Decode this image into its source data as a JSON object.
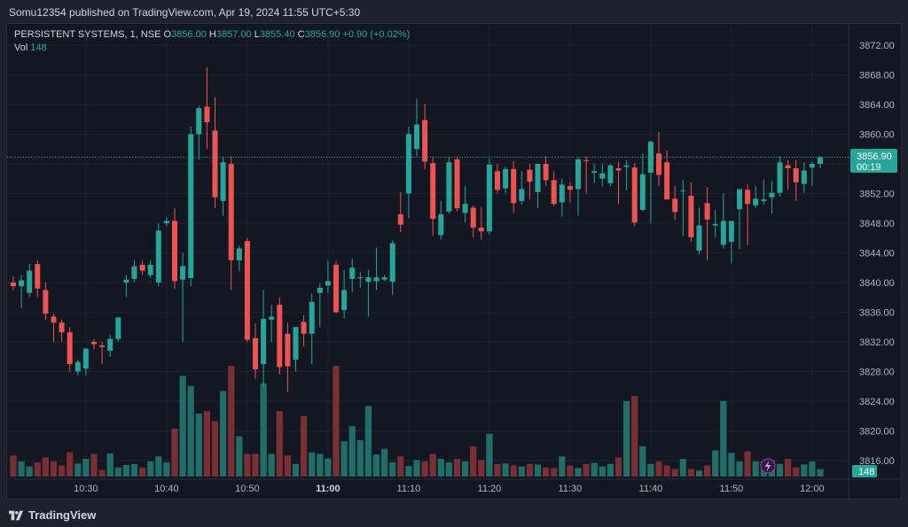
{
  "publisher_line": "Somu12354 published on TradingView.com, Apr 19, 2024 11:55 UTC+5:30",
  "legend": {
    "symbol": "PERSISTENT SYSTEMS, 1, NSE",
    "open_label": "O",
    "open": "3856.00",
    "high_label": "H",
    "high": "3857.00",
    "low_label": "L",
    "low": "3855.40",
    "close_label": "C",
    "close": "3856.90",
    "change": "+0.90 (+0.02%)"
  },
  "volume_legend": {
    "label": "Vol",
    "value": "148"
  },
  "price_tag": {
    "price": "3856.90",
    "countdown": "00:19"
  },
  "volume_tag": "148",
  "footer_brand": "TradingView",
  "colors": {
    "up": "#26a69a",
    "down": "#ef5350",
    "up_vol": "#1f6e68",
    "down_vol": "#7a2f34",
    "bg": "#131722",
    "grid": "#1f2331"
  },
  "chart_data": {
    "type": "candlestick",
    "title": "PERSISTENT SYSTEMS, 1, NSE",
    "ylim": [
      3814,
      3874
    ],
    "y_ticks": [
      "3872.00",
      "3868.00",
      "3864.00",
      "3860.00",
      "3856.00",
      "3852.00",
      "3848.00",
      "3844.00",
      "3840.00",
      "3836.00",
      "3832.00",
      "3828.00",
      "3824.00",
      "3820.00",
      "3816.00"
    ],
    "x_ticks": [
      {
        "label": "10:30",
        "bold": false,
        "index": 9
      },
      {
        "label": "10:40",
        "bold": false,
        "index": 19
      },
      {
        "label": "10:50",
        "bold": false,
        "index": 29
      },
      {
        "label": "11:00",
        "bold": true,
        "index": 39
      },
      {
        "label": "11:10",
        "bold": false,
        "index": 49
      },
      {
        "label": "11:20",
        "bold": false,
        "index": 59
      },
      {
        "label": "11:30",
        "bold": false,
        "index": 69
      },
      {
        "label": "11:40",
        "bold": false,
        "index": 79
      },
      {
        "label": "11:50",
        "bold": false,
        "index": 89
      },
      {
        "label": "12:00",
        "bold": false,
        "index": 99
      }
    ],
    "grid": true,
    "last_price": 3856.9,
    "candles": [
      [
        3840.0,
        3840.8,
        3839.0,
        3839.5,
        420
      ],
      [
        3839.5,
        3841.0,
        3836.5,
        3840.3,
        300
      ],
      [
        3838.6,
        3842.5,
        3838.0,
        3841.6,
        200
      ],
      [
        3842.5,
        3843.0,
        3838.0,
        3839.2,
        280
      ],
      [
        3839.0,
        3840.0,
        3835.0,
        3835.8,
        380
      ],
      [
        3835.4,
        3835.8,
        3832.0,
        3834.6,
        300
      ],
      [
        3834.6,
        3835.0,
        3832.0,
        3833.3,
        220
      ],
      [
        3833.3,
        3834.0,
        3828.0,
        3829.0,
        480
      ],
      [
        3828.0,
        3829.6,
        3827.5,
        3829.3,
        260
      ],
      [
        3828.4,
        3831.0,
        3827.5,
        3831.1,
        350
      ],
      [
        3832.0,
        3832.4,
        3831.0,
        3831.7,
        450
      ],
      [
        3831.5,
        3832.0,
        3829.0,
        3831.3,
        130
      ],
      [
        3830.8,
        3833.0,
        3830.0,
        3832.4,
        460
      ],
      [
        3832.4,
        3835.0,
        3832.0,
        3835.3,
        180
      ],
      [
        3840.0,
        3841.0,
        3838.0,
        3840.4,
        230
      ],
      [
        3840.5,
        3843.0,
        3840.0,
        3842.2,
        250
      ],
      [
        3842.4,
        3843.0,
        3841.0,
        3841.6,
        180
      ],
      [
        3841.0,
        3843.0,
        3840.6,
        3842.4,
        300
      ],
      [
        3840.0,
        3848.0,
        3839.5,
        3847.0,
        400
      ],
      [
        3848.0,
        3848.8,
        3847.6,
        3848.3,
        280
      ],
      [
        3848.3,
        3850.0,
        3839.2,
        3840.2,
        950
      ],
      [
        3840.4,
        3844.0,
        3832.0,
        3842.2,
        2000
      ],
      [
        3840.6,
        3861.0,
        3839.5,
        3860.0,
        1800
      ],
      [
        3860.0,
        3863.8,
        3856.6,
        3863.5,
        1250
      ],
      [
        3863.7,
        3869.0,
        3858.0,
        3861.6,
        1300
      ],
      [
        3860.5,
        3865.0,
        3850.0,
        3851.5,
        1100
      ],
      [
        3851.0,
        3857.0,
        3849.0,
        3856.2,
        1700
      ],
      [
        3856.0,
        3857.0,
        3839.0,
        3843.0,
        2200
      ],
      [
        3843.0,
        3845.0,
        3841.5,
        3844.6,
        800
      ],
      [
        3845.6,
        3846.0,
        3832.0,
        3832.3,
        450
      ],
      [
        3832.5,
        3834.5,
        3827.0,
        3828.3,
        450
      ],
      [
        3829.0,
        3839.0,
        3826.0,
        3835.1,
        1850
      ],
      [
        3835.0,
        3837.0,
        3832.0,
        3835.4,
        450
      ],
      [
        3837.0,
        3838.0,
        3827.6,
        3828.6,
        1300
      ],
      [
        3833.1,
        3834.6,
        3825.3,
        3828.7,
        420
      ],
      [
        3829.6,
        3834.0,
        3828.0,
        3834.0,
        250
      ],
      [
        3834.7,
        3835.6,
        3831.4,
        3833.1,
        1200
      ],
      [
        3833.1,
        3838.5,
        3829.0,
        3837.4,
        480
      ],
      [
        3838.6,
        3839.9,
        3834.0,
        3839.3,
        450
      ],
      [
        3839.6,
        3843.0,
        3838.6,
        3840.2,
        360
      ],
      [
        3842.4,
        3842.9,
        3835.9,
        3836.0,
        2200
      ],
      [
        3836.3,
        3841.7,
        3835.2,
        3839.0,
        700
      ],
      [
        3840.5,
        3843.2,
        3838.7,
        3842.0,
        1000
      ],
      [
        3840.7,
        3841.4,
        3839.3,
        3840.7,
        720
      ],
      [
        3840.1,
        3841.7,
        3835.4,
        3840.7,
        1400
      ],
      [
        3840.2,
        3844.7,
        3839.0,
        3840.7,
        440
      ],
      [
        3840.4,
        3841.0,
        3840.2,
        3840.7,
        550
      ],
      [
        3840.1,
        3845.7,
        3838.3,
        3845.3,
        280
      ],
      [
        3849.2,
        3852.2,
        3846.8,
        3847.8,
        400
      ],
      [
        3852.0,
        3861.0,
        3848.7,
        3860.0,
        210
      ],
      [
        3858.0,
        3864.8,
        3857.0,
        3861.3,
        330
      ],
      [
        3861.9,
        3864.1,
        3855.3,
        3856.3,
        300
      ],
      [
        3856.1,
        3857.0,
        3846.3,
        3848.6,
        450
      ],
      [
        3846.4,
        3851.0,
        3845.8,
        3849.2,
        350
      ],
      [
        3849.6,
        3857.0,
        3849.3,
        3856.2,
        280
      ],
      [
        3856.6,
        3857.0,
        3849.6,
        3850.0,
        350
      ],
      [
        3849.4,
        3853.0,
        3848.1,
        3850.6,
        300
      ],
      [
        3850.1,
        3850.4,
        3846.1,
        3847.4,
        600
      ],
      [
        3847.4,
        3850.2,
        3845.8,
        3846.9,
        330
      ],
      [
        3846.9,
        3856.7,
        3846.5,
        3855.9,
        850
      ],
      [
        3855.0,
        3856.0,
        3852.0,
        3852.5,
        250
      ],
      [
        3852.7,
        3855.6,
        3852.0,
        3855.3,
        260
      ],
      [
        3855.3,
        3856.4,
        3849.4,
        3850.7,
        220
      ],
      [
        3851.0,
        3855.0,
        3850.5,
        3852.6,
        200
      ],
      [
        3855.2,
        3856.0,
        3851.3,
        3853.6,
        250
      ],
      [
        3852.2,
        3856.0,
        3850.0,
        3856.0,
        240
      ],
      [
        3856.0,
        3857.0,
        3853.0,
        3853.8,
        180
      ],
      [
        3853.8,
        3855.0,
        3850.3,
        3850.6,
        170
      ],
      [
        3850.8,
        3854.0,
        3848.9,
        3853.2,
        400
      ],
      [
        3853.0,
        3853.5,
        3850.8,
        3852.5,
        220
      ],
      [
        3852.6,
        3856.8,
        3849.0,
        3856.6,
        170
      ],
      [
        3856.5,
        3857.0,
        3852.0,
        3856.4,
        250
      ],
      [
        3854.8,
        3856.0,
        3853.4,
        3855.0,
        270
      ],
      [
        3854.0,
        3856.0,
        3853.0,
        3854.7,
        200
      ],
      [
        3853.4,
        3856.0,
        3853.0,
        3855.8,
        250
      ],
      [
        3855.4,
        3856.3,
        3850.6,
        3855.1,
        380
      ],
      [
        3855.6,
        3856.5,
        3852.4,
        3855.8,
        1500
      ],
      [
        3855.5,
        3856.1,
        3847.6,
        3848.1,
        1600
      ],
      [
        3849.8,
        3857.4,
        3849.6,
        3854.6,
        600
      ],
      [
        3854.8,
        3859.1,
        3848.0,
        3859.0,
        250
      ],
      [
        3857.4,
        3860.3,
        3853.0,
        3854.5,
        300
      ],
      [
        3856.2,
        3857.8,
        3851.5,
        3851.2,
        220
      ],
      [
        3851.3,
        3853.0,
        3848.4,
        3849.5,
        150
      ],
      [
        3852.3,
        3853.8,
        3846.3,
        3852.4,
        350
      ],
      [
        3851.7,
        3853.5,
        3845.5,
        3846.1,
        150
      ],
      [
        3844.3,
        3850.1,
        3843.8,
        3847.7,
        120
      ],
      [
        3850.7,
        3852.9,
        3843.0,
        3848.5,
        220
      ],
      [
        3847.7,
        3849.8,
        3846.1,
        3847.9,
        520
      ],
      [
        3845.1,
        3852.0,
        3844.6,
        3848.3,
        1500
      ],
      [
        3845.5,
        3848.0,
        3842.6,
        3848.3,
        470
      ],
      [
        3849.9,
        3852.5,
        3844.5,
        3852.6,
        300
      ],
      [
        3852.5,
        3853.2,
        3845.0,
        3850.6,
        500
      ],
      [
        3850.4,
        3853.0,
        3850.0,
        3851.3,
        300
      ],
      [
        3851.0,
        3853.9,
        3850.5,
        3851.2,
        300
      ],
      [
        3851.5,
        3853.7,
        3849.3,
        3852.1,
        320
      ],
      [
        3852.1,
        3857.0,
        3851.6,
        3856.2,
        250
      ],
      [
        3855.8,
        3856.5,
        3852.5,
        3855.4,
        350
      ],
      [
        3855.4,
        3856.6,
        3851.0,
        3853.5,
        180
      ],
      [
        3853.3,
        3856.2,
        3852.1,
        3855.1,
        240
      ],
      [
        3855.5,
        3856.3,
        3853.0,
        3856.0,
        300
      ],
      [
        3856.0,
        3857.0,
        3855.4,
        3856.9,
        148
      ]
    ]
  }
}
